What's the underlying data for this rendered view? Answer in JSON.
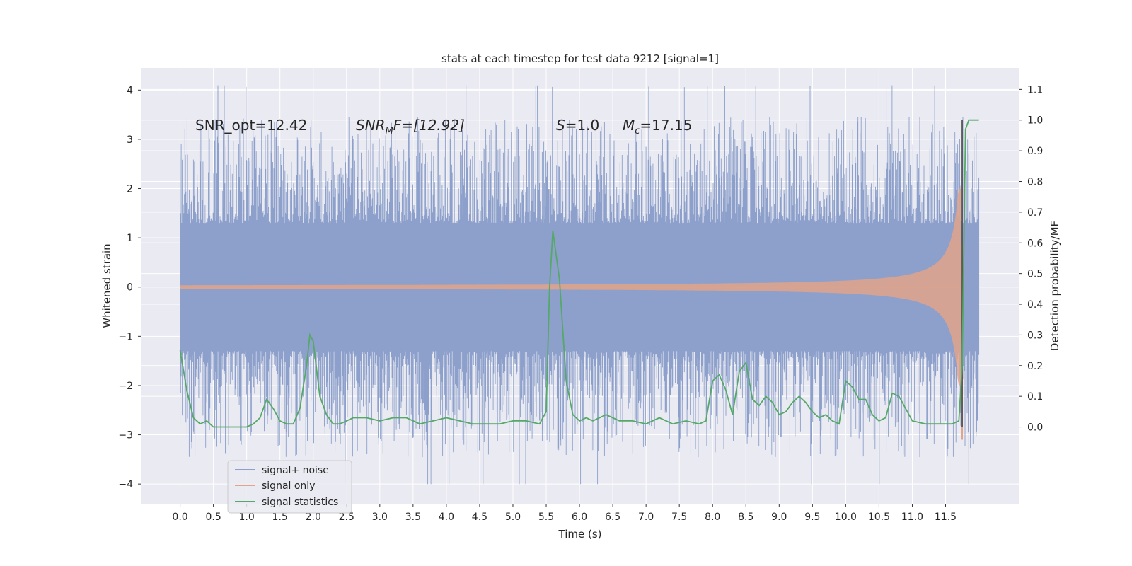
{
  "chart_data": {
    "type": "line",
    "title": "stats at each timestep for test data 9212 [signal=1]",
    "xlabel": "Time (s)",
    "ylabel": "Whitened strain",
    "ylabel_right": "Detection probability/MF",
    "xlim": [
      -0.58,
      12.6
    ],
    "ylim": [
      -4.4,
      4.45
    ],
    "ylim_right": [
      -0.25,
      1.17
    ],
    "xticks": [
      "0.0",
      "0.5",
      "1.0",
      "1.5",
      "2.0",
      "2.5",
      "3.0",
      "3.5",
      "4.0",
      "4.5",
      "5.0",
      "5.5",
      "6.0",
      "6.5",
      "7.0",
      "7.5",
      "8.0",
      "8.5",
      "9.0",
      "9.5",
      "10.0",
      "10.5",
      "11.0",
      "11.5"
    ],
    "yticks_left": [
      "4",
      "3",
      "2",
      "1",
      "0",
      "−1",
      "−2",
      "−3",
      "−4"
    ],
    "yticks_right": [
      "1.1",
      "1.0",
      "0.9",
      "0.8",
      "0.7",
      "0.6",
      "0.5",
      "0.4",
      "0.3",
      "0.2",
      "0.1",
      "0.0"
    ],
    "annotations": {
      "snr_opt": "SNR_opt=12.42",
      "snr_mf_base": "SNR",
      "snr_mf_sub": "M",
      "snr_mf_rest": "F=[12.92]",
      "s_sym": "S",
      "s_rest": "=1.0",
      "mc_sym": "M",
      "mc_sub": "c",
      "mc_rest": "=17.15"
    },
    "grid": true,
    "legend_position": "lower-left",
    "series": [
      {
        "name": "signal+ noise",
        "color": "#8da0cb",
        "noise_envelope": 1.3,
        "noise_peak_range": [
          -4.0,
          4.1
        ],
        "t_range": [
          0.0,
          12.0
        ]
      },
      {
        "name": "signal only",
        "color": "#e1a38a",
        "chirp_amplitude_start": 0.02,
        "chirp_amplitude_end": 2.0,
        "t_range": [
          0.0,
          11.75
        ]
      },
      {
        "name": "signal statistics",
        "color": "#55a868",
        "x": [
          0.0,
          0.1,
          0.2,
          0.3,
          0.4,
          0.5,
          0.7,
          0.9,
          1.0,
          1.1,
          1.2,
          1.3,
          1.4,
          1.5,
          1.6,
          1.7,
          1.8,
          1.9,
          1.95,
          2.0,
          2.1,
          2.2,
          2.3,
          2.4,
          2.5,
          2.6,
          2.8,
          3.0,
          3.2,
          3.4,
          3.6,
          3.8,
          4.0,
          4.2,
          4.4,
          4.6,
          4.8,
          5.0,
          5.2,
          5.4,
          5.5,
          5.55,
          5.6,
          5.7,
          5.8,
          5.9,
          6.0,
          6.1,
          6.2,
          6.3,
          6.4,
          6.5,
          6.6,
          6.8,
          7.0,
          7.2,
          7.4,
          7.6,
          7.8,
          7.9,
          8.0,
          8.1,
          8.2,
          8.3,
          8.4,
          8.5,
          8.6,
          8.7,
          8.8,
          8.9,
          9.0,
          9.1,
          9.2,
          9.3,
          9.4,
          9.5,
          9.6,
          9.7,
          9.8,
          9.9,
          10.0,
          10.1,
          10.2,
          10.3,
          10.4,
          10.5,
          10.6,
          10.7,
          10.8,
          10.9,
          11.0,
          11.2,
          11.4,
          11.6,
          11.7,
          11.75,
          11.8,
          11.85,
          11.9,
          11.95,
          12.0
        ],
        "values": [
          0.25,
          0.12,
          0.03,
          0.01,
          0.02,
          0.0,
          0.0,
          0.0,
          0.0,
          0.01,
          0.03,
          0.09,
          0.06,
          0.02,
          0.01,
          0.01,
          0.06,
          0.2,
          0.3,
          0.28,
          0.1,
          0.04,
          0.01,
          0.01,
          0.02,
          0.03,
          0.03,
          0.02,
          0.03,
          0.03,
          0.01,
          0.02,
          0.03,
          0.02,
          0.01,
          0.01,
          0.01,
          0.02,
          0.02,
          0.01,
          0.05,
          0.45,
          0.64,
          0.48,
          0.15,
          0.04,
          0.02,
          0.03,
          0.02,
          0.03,
          0.04,
          0.03,
          0.02,
          0.02,
          0.01,
          0.03,
          0.01,
          0.02,
          0.01,
          0.02,
          0.15,
          0.17,
          0.12,
          0.04,
          0.18,
          0.21,
          0.09,
          0.07,
          0.1,
          0.08,
          0.04,
          0.05,
          0.08,
          0.1,
          0.08,
          0.05,
          0.03,
          0.04,
          0.02,
          0.01,
          0.15,
          0.13,
          0.09,
          0.09,
          0.04,
          0.02,
          0.03,
          0.11,
          0.1,
          0.06,
          0.02,
          0.01,
          0.01,
          0.01,
          0.02,
          0.2,
          0.97,
          1.0,
          1.0,
          1.0,
          1.0
        ]
      }
    ]
  }
}
